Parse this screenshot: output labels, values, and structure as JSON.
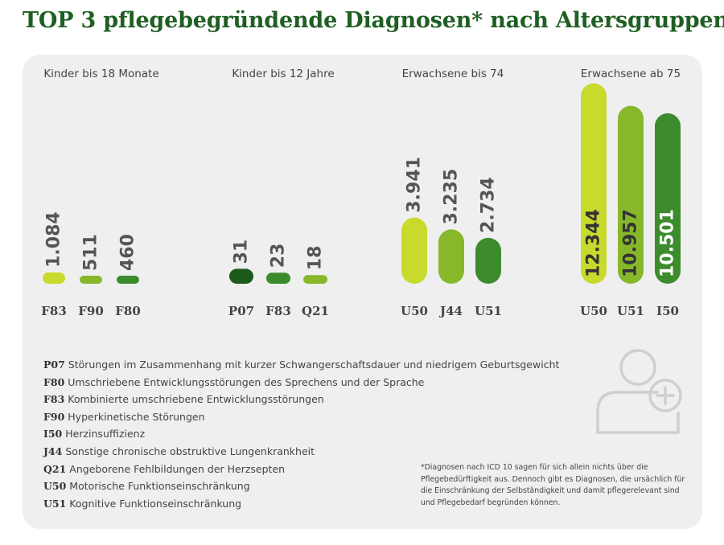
{
  "title": "TOP 3 pflegebegründende Diagnosen* nach Altersgruppen",
  "chart_data": [
    {
      "type": "bar",
      "title": "Kinder bis 18 Monate",
      "categories": [
        "F83",
        "F90",
        "F80"
      ],
      "values": [
        1084,
        511,
        460
      ],
      "labels": [
        "1.084",
        "511",
        "460"
      ],
      "colors": [
        "#c8da2b",
        "#86b82a",
        "#3c8c2d"
      ]
    },
    {
      "type": "bar",
      "title": "Kinder bis 12 Jahre",
      "categories": [
        "P07",
        "F83",
        "Q21"
      ],
      "values": [
        31,
        23,
        18
      ],
      "labels": [
        "31",
        "23",
        "18"
      ],
      "colors": [
        "#1c5a1c",
        "#3c8c2d",
        "#86b82a"
      ]
    },
    {
      "type": "bar",
      "title": "Erwachsene bis 74",
      "categories": [
        "U50",
        "J44",
        "U51"
      ],
      "values": [
        3941,
        3235,
        2734
      ],
      "labels": [
        "3.941",
        "3.235",
        "2.734"
      ],
      "colors": [
        "#c8da2b",
        "#86b82a",
        "#3c8c2d"
      ]
    },
    {
      "type": "bar",
      "title": "Erwachsene ab 75",
      "categories": [
        "U50",
        "U51",
        "I50"
      ],
      "values": [
        12344,
        10957,
        10501
      ],
      "labels": [
        "12.344",
        "10.957",
        "10.501"
      ],
      "colors": [
        "#c8da2b",
        "#86b82a",
        "#3c8c2d"
      ]
    }
  ],
  "legend": [
    {
      "code": "P07",
      "text": "Störungen im Zusammenhang mit kurzer Schwangerschaftsdauer und niedrigem Geburtsgewicht"
    },
    {
      "code": "F80",
      "text": "Umschriebene Entwicklungsstörungen des Sprechens und der Sprache"
    },
    {
      "code": "F83",
      "text": "Kombinierte umschriebene Entwicklungsstörungen"
    },
    {
      "code": "F90",
      "text": "Hyperkinetische Störungen"
    },
    {
      "code": "I50",
      "text": "Herzinsuffizienz"
    },
    {
      "code": "J44",
      "text": "Sonstige chronische obstruktive Lungenkrankheit"
    },
    {
      "code": "Q21",
      "text": "Angeborene Fehlbildungen der Herzsepten"
    },
    {
      "code": "U50",
      "text": "Motorische Funktionseinschränkung"
    },
    {
      "code": "U51",
      "text": "Kognitive Funktionseinschränkung"
    }
  ],
  "note": "*Diagnosen nach ICD 10 sagen für sich allein nichts über die Pflegebedürftigkeit aus. Dennoch gibt es Diagnosen, die ursächlich für die Einschränkung der Selbständigkeit und damit pflegerelevant sind und Pflegebedarf begründen können.",
  "icon": "person-plus-icon"
}
